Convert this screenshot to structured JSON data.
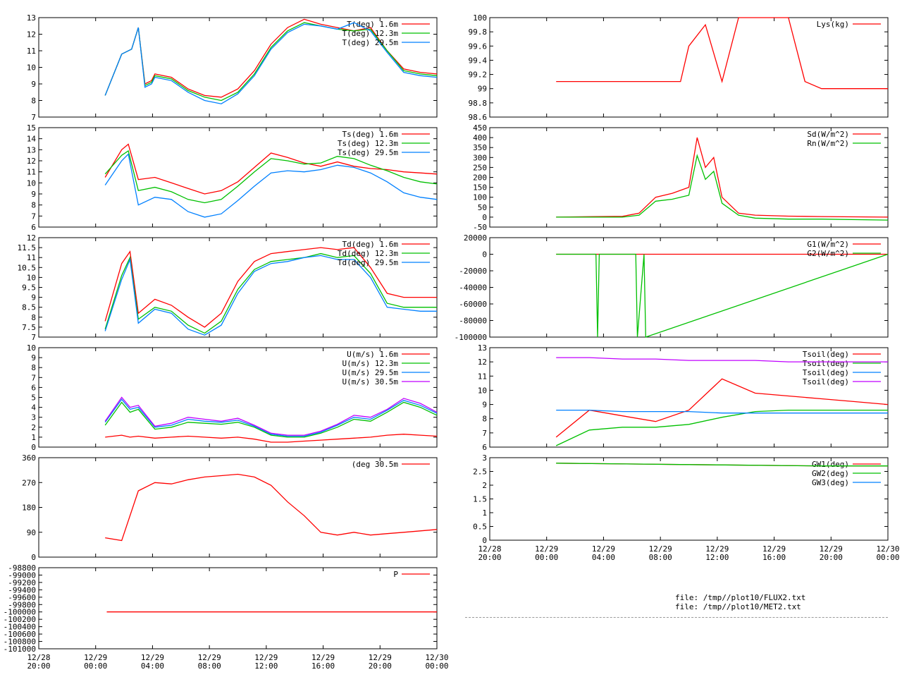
{
  "colors": {
    "red": "#ff0000",
    "green": "#00c000",
    "blue": "#0080ff",
    "purple": "#c000ff"
  },
  "files": [
    "file: /tmp//plot10/FLUX2.txt",
    "file: /tmp//plot10/MET2.txt"
  ],
  "x_ticks": [
    "12/28\n20:00",
    "12/29\n00:00",
    "12/29\n04:00",
    "12/29\n08:00",
    "12/29\n12:00",
    "12/29\n16:00",
    "12/29\n20:00",
    "12/30\n00:00"
  ],
  "chart_data": [
    {
      "id": "temperature",
      "type": "line",
      "column": "left",
      "ylim": [
        7,
        13
      ],
      "ytick_labels": [
        "7",
        "8",
        "9",
        "10",
        "11",
        "12",
        "13"
      ],
      "x": [
        0,
        2,
        4,
        5,
        5.6,
        6,
        6.4,
        6.8,
        7,
        8,
        9,
        10,
        11,
        12,
        13,
        14,
        15,
        16,
        17,
        18,
        19,
        20,
        21,
        22,
        23,
        24
      ],
      "series": [
        {
          "name": "T(deg)  1.6m",
          "color": "red",
          "values": [
            null,
            null,
            8.3,
            10.8,
            11.1,
            12.4,
            9.0,
            9.2,
            9.6,
            9.4,
            8.7,
            8.3,
            8.2,
            8.7,
            9.8,
            11.4,
            12.4,
            12.9,
            12.6,
            12.4,
            12.2,
            12.4,
            11.0,
            9.9,
            9.7,
            9.6
          ]
        },
        {
          "name": "T(deg) 12.3m",
          "color": "green",
          "values": [
            null,
            null,
            8.3,
            10.8,
            11.1,
            12.4,
            8.9,
            9.1,
            9.5,
            9.3,
            8.6,
            8.2,
            8.0,
            8.5,
            9.6,
            11.2,
            12.2,
            12.7,
            12.5,
            12.3,
            12.2,
            12.3,
            11.0,
            9.8,
            9.6,
            9.5
          ]
        },
        {
          "name": "T(deg) 29.5m",
          "color": "blue",
          "values": [
            null,
            null,
            8.3,
            10.8,
            11.1,
            12.4,
            8.8,
            9.0,
            9.4,
            9.2,
            8.5,
            8.0,
            7.8,
            8.4,
            9.5,
            11.1,
            12.1,
            12.6,
            12.5,
            12.3,
            12.7,
            12.2,
            10.9,
            9.7,
            9.5,
            9.4
          ]
        }
      ]
    },
    {
      "id": "sonic-temperature",
      "type": "line",
      "column": "left",
      "ylim": [
        6,
        15
      ],
      "ytick_labels": [
        "6",
        "7",
        "8",
        "9",
        "10",
        "11",
        "12",
        "13",
        "14",
        "15"
      ],
      "x": [
        0,
        2,
        3,
        4,
        5,
        5.4,
        6,
        7,
        8,
        9,
        10,
        11,
        12,
        13,
        14,
        15,
        16,
        17,
        18,
        19,
        20,
        21,
        22,
        23,
        24
      ],
      "series": [
        {
          "name": "Ts(deg)  1.6m",
          "color": "red",
          "values": [
            null,
            null,
            null,
            10.5,
            13.0,
            13.5,
            10.3,
            10.5,
            10.0,
            9.5,
            9.0,
            9.3,
            10.1,
            11.4,
            12.7,
            12.3,
            11.8,
            11.5,
            11.9,
            11.5,
            11.3,
            11.2,
            11.0,
            10.9,
            10.8
          ]
        },
        {
          "name": "Ts(deg) 12.3m",
          "color": "green",
          "values": [
            null,
            null,
            null,
            10.8,
            12.5,
            12.9,
            9.3,
            9.6,
            9.2,
            8.5,
            8.2,
            8.5,
            9.7,
            11.0,
            12.2,
            12.0,
            11.7,
            11.8,
            12.4,
            12.2,
            11.6,
            11.1,
            10.5,
            10.1,
            9.9
          ]
        },
        {
          "name": "Ts(deg) 29.5m",
          "color": "blue",
          "values": [
            null,
            null,
            null,
            9.8,
            12.0,
            12.6,
            8.0,
            8.7,
            8.5,
            7.4,
            6.9,
            7.2,
            8.4,
            9.7,
            10.9,
            11.1,
            11.0,
            11.2,
            11.6,
            11.4,
            10.9,
            10.1,
            9.1,
            8.7,
            8.5
          ]
        }
      ]
    },
    {
      "id": "dewpoint",
      "type": "line",
      "column": "left",
      "ylim": [
        7,
        12
      ],
      "ytick_labels": [
        "7",
        "7.5",
        "8",
        "8.5",
        "9",
        "9.5",
        "10",
        "10.5",
        "11",
        "11.5",
        "12"
      ],
      "x": [
        0,
        2,
        3,
        4,
        5,
        5.5,
        6,
        7,
        8,
        9,
        10,
        11,
        12,
        13,
        14,
        15,
        16,
        17,
        18,
        19,
        20,
        21,
        22,
        23,
        24
      ],
      "series": [
        {
          "name": "Td(deg)  1.6m",
          "color": "red",
          "values": [
            null,
            null,
            null,
            7.8,
            10.7,
            11.3,
            8.2,
            8.9,
            8.6,
            8.0,
            7.5,
            8.2,
            9.8,
            10.8,
            11.2,
            11.3,
            11.4,
            11.5,
            11.4,
            11.5,
            10.5,
            9.2,
            9.0,
            9.0,
            9.0
          ]
        },
        {
          "name": "Td(deg) 12.3m",
          "color": "green",
          "values": [
            null,
            null,
            null,
            7.4,
            10.1,
            11.0,
            7.9,
            8.5,
            8.3,
            7.6,
            7.2,
            7.8,
            9.4,
            10.4,
            10.8,
            10.9,
            11.0,
            11.2,
            11.0,
            11.1,
            10.2,
            8.7,
            8.5,
            8.5,
            8.5
          ]
        },
        {
          "name": "Td(deg) 29.5m",
          "color": "blue",
          "values": [
            null,
            null,
            null,
            7.3,
            9.9,
            10.9,
            7.7,
            8.4,
            8.2,
            7.4,
            7.1,
            7.6,
            9.2,
            10.3,
            10.7,
            10.8,
            11.0,
            11.1,
            10.9,
            10.9,
            10.0,
            8.5,
            8.4,
            8.3,
            8.3
          ]
        }
      ]
    },
    {
      "id": "wind-speed",
      "type": "line",
      "column": "left",
      "ylim": [
        0,
        10
      ],
      "ytick_labels": [
        "0",
        "1",
        "2",
        "3",
        "4",
        "5",
        "6",
        "7",
        "8",
        "9",
        "10"
      ],
      "x": [
        0,
        2,
        3,
        4,
        5,
        5.5,
        6,
        7,
        8,
        9,
        10,
        11,
        12,
        13,
        14,
        15,
        16,
        17,
        18,
        19,
        20,
        21,
        22,
        23,
        24
      ],
      "series": [
        {
          "name": "U(m/s)  1.6m",
          "color": "red",
          "values": [
            null,
            null,
            null,
            1.0,
            1.2,
            1.0,
            1.1,
            0.9,
            1.0,
            1.1,
            1.0,
            0.9,
            1.0,
            0.8,
            0.5,
            0.5,
            0.6,
            0.7,
            0.8,
            0.9,
            1.0,
            1.2,
            1.3,
            1.2,
            1.1
          ]
        },
        {
          "name": "U(m/s) 12.3m",
          "color": "green",
          "values": [
            null,
            null,
            null,
            2.2,
            4.5,
            3.5,
            3.8,
            1.8,
            2.0,
            2.5,
            2.4,
            2.3,
            2.5,
            2.0,
            1.2,
            1.0,
            1.0,
            1.4,
            2.0,
            2.8,
            2.6,
            3.5,
            4.5,
            4.0,
            3.2
          ]
        },
        {
          "name": "U(m/s) 29.5m",
          "color": "blue",
          "values": [
            null,
            null,
            null,
            2.5,
            4.8,
            3.8,
            4.0,
            2.0,
            2.2,
            2.8,
            2.6,
            2.5,
            2.7,
            2.1,
            1.3,
            1.1,
            1.1,
            1.5,
            2.2,
            3.0,
            2.8,
            3.7,
            4.7,
            4.2,
            3.4
          ]
        },
        {
          "name": "U(m/s) 30.5m",
          "color": "purple",
          "values": [
            null,
            null,
            null,
            2.6,
            5.0,
            4.0,
            4.2,
            2.1,
            2.4,
            3.0,
            2.8,
            2.6,
            2.9,
            2.2,
            1.4,
            1.2,
            1.2,
            1.6,
            2.3,
            3.2,
            3.0,
            3.8,
            4.9,
            4.4,
            3.5
          ]
        }
      ]
    },
    {
      "id": "wind-direction",
      "type": "line",
      "column": "left",
      "ylim": [
        0,
        360
      ],
      "ytick_labels": [
        "0",
        "90",
        "180",
        "270",
        "360"
      ],
      "x": [
        0,
        2,
        3,
        4,
        5,
        6,
        7,
        8,
        9,
        10,
        11,
        12,
        13,
        14,
        15,
        16,
        17,
        18,
        19,
        20,
        21,
        22,
        23,
        24
      ],
      "series": [
        {
          "name": "(deg  30.5m",
          "color": "red",
          "values": [
            null,
            null,
            null,
            70,
            60,
            240,
            270,
            265,
            280,
            290,
            295,
            300,
            290,
            260,
            200,
            150,
            90,
            80,
            90,
            80,
            85,
            90,
            95,
            100
          ]
        }
      ]
    },
    {
      "id": "pressure",
      "type": "line",
      "column": "left",
      "ylim": [
        -101000,
        -98800
      ],
      "ytick_labels": [
        "-101000",
        "-100800",
        "-100600",
        "-100400",
        "-100200",
        "-100000",
        "-99800",
        "-99600",
        "-99400",
        "-99200",
        "-99000",
        "-98800"
      ],
      "x": [
        0,
        4.1,
        24
      ],
      "series": [
        {
          "name": "P",
          "color": "red",
          "values": [
            null,
            -100000,
            -100000
          ]
        }
      ]
    },
    {
      "id": "lysimeter",
      "type": "line",
      "column": "right",
      "ylim": [
        98.6,
        100
      ],
      "ytick_labels": [
        "98.6",
        "98.8",
        "99",
        "99.2",
        "99.4",
        "99.6",
        "99.8",
        "100"
      ],
      "x": [
        0,
        4,
        6,
        8,
        10,
        11.5,
        12,
        13,
        14,
        15,
        18,
        19,
        20,
        22,
        24
      ],
      "series": [
        {
          "name": "Lys(kg)",
          "color": "red",
          "values": [
            null,
            99.1,
            99.1,
            99.1,
            99.1,
            99.1,
            99.6,
            99.9,
            99.1,
            100,
            100,
            99.1,
            99.0,
            99.0,
            99.0
          ]
        }
      ]
    },
    {
      "id": "radiation",
      "type": "line",
      "column": "right",
      "ylim": [
        -50,
        450
      ],
      "ytick_labels": [
        "-50",
        "0",
        "50",
        "100",
        "150",
        "200",
        "250",
        "300",
        "350",
        "400",
        "450"
      ],
      "x": [
        0,
        4,
        6,
        8,
        9,
        10,
        11,
        12,
        12.5,
        13,
        13.5,
        14,
        15,
        16,
        18,
        20,
        24
      ],
      "series": [
        {
          "name": "Sd(W/m^2)",
          "color": "red",
          "values": [
            null,
            0,
            2,
            4,
            20,
            100,
            120,
            150,
            400,
            250,
            300,
            100,
            20,
            10,
            5,
            3,
            0
          ]
        },
        {
          "name": "Rn(W/m^2)",
          "color": "green",
          "values": [
            null,
            0,
            0,
            0,
            10,
            80,
            90,
            110,
            310,
            190,
            230,
            70,
            10,
            -5,
            -10,
            -10,
            -15
          ]
        }
      ]
    },
    {
      "id": "soil-heat-flux",
      "type": "line",
      "column": "right",
      "ylim": [
        -100000,
        20000
      ],
      "ytick_labels": [
        "-100000",
        "-80000",
        "-60000",
        "-40000",
        "-20000",
        "0",
        "20000"
      ],
      "x": [
        0,
        4,
        6.4,
        6.5,
        6.6,
        8.8,
        8.9,
        9.3,
        9.4,
        24
      ],
      "series": [
        {
          "name": "G1(W/m^2)",
          "color": "red",
          "values": [
            null,
            0,
            0,
            0,
            0,
            0,
            0,
            0,
            0,
            0
          ]
        },
        {
          "name": "G2(W/m^2)",
          "color": "green",
          "values": [
            null,
            0,
            0,
            -100000,
            0,
            0,
            -100000,
            0,
            -100000,
            0
          ]
        }
      ]
    },
    {
      "id": "soil-temperature",
      "type": "line",
      "column": "right",
      "ylim": [
        6,
        13
      ],
      "ytick_labels": [
        "6",
        "7",
        "8",
        "9",
        "10",
        "11",
        "12",
        "13"
      ],
      "x": [
        0,
        4,
        6,
        8,
        10,
        12,
        14,
        16,
        18,
        20,
        22,
        24
      ],
      "series": [
        {
          "name": "Tsoil(deg)",
          "color": "red",
          "values": [
            null,
            6.7,
            8.6,
            8.2,
            7.8,
            8.6,
            10.8,
            9.8,
            9.6,
            9.4,
            9.2,
            9.0
          ]
        },
        {
          "name": "Tsoil(deg)",
          "color": "green",
          "values": [
            null,
            6.1,
            7.2,
            7.4,
            7.4,
            7.6,
            8.1,
            8.5,
            8.6,
            8.6,
            8.6,
            8.6
          ]
        },
        {
          "name": "Tsoil(deg)",
          "color": "blue",
          "values": [
            null,
            8.6,
            8.6,
            8.5,
            8.5,
            8.5,
            8.4,
            8.4,
            8.4,
            8.4,
            8.4,
            8.4
          ]
        },
        {
          "name": "Tsoil(deg)",
          "color": "purple",
          "values": [
            null,
            12.3,
            12.3,
            12.2,
            12.2,
            12.1,
            12.1,
            12.1,
            12.0,
            12.0,
            12.0,
            12.0
          ]
        }
      ]
    },
    {
      "id": "ground-water",
      "type": "line",
      "column": "right",
      "ylim": [
        0,
        3
      ],
      "ytick_labels": [
        "0",
        "0.5",
        "1",
        "1.5",
        "2",
        "2.5",
        "3"
      ],
      "x": [
        0,
        4,
        12,
        20,
        24
      ],
      "series": [
        {
          "name": "GW1(deg)",
          "color": "red",
          "values": [
            null,
            2.8,
            2.75,
            2.7,
            2.7
          ]
        },
        {
          "name": "GW2(deg)",
          "color": "green",
          "values": [
            null,
            2.8,
            2.75,
            2.7,
            2.7
          ]
        },
        {
          "name": "GW3(deg)",
          "color": "blue",
          "values": [
            null,
            null,
            null,
            null,
            null
          ]
        }
      ]
    }
  ]
}
